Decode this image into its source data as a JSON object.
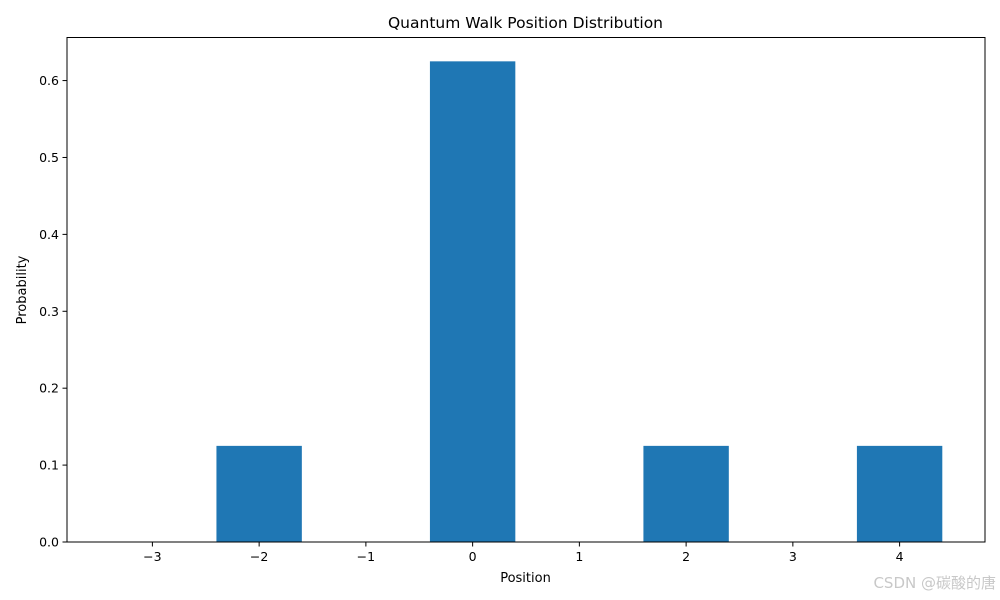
{
  "chart_data": {
    "type": "bar",
    "title": "Quantum Walk Position Distribution",
    "xlabel": "Position",
    "ylabel": "Probability",
    "x": [
      -2,
      0,
      2,
      4
    ],
    "values": [
      0.125,
      0.625,
      0.125,
      0.125
    ],
    "xlim": [
      -3.8,
      4.8
    ],
    "ylim": [
      0,
      0.656
    ],
    "xticks": [
      -3,
      -2,
      -1,
      0,
      1,
      2,
      3,
      4
    ],
    "xtick_labels": [
      "−3",
      "−2",
      "−1",
      "0",
      "1",
      "2",
      "3",
      "4"
    ],
    "yticks": [
      0.0,
      0.1,
      0.2,
      0.3,
      0.4,
      0.5,
      0.6
    ],
    "ytick_labels": [
      "0.0",
      "0.1",
      "0.2",
      "0.3",
      "0.4",
      "0.5",
      "0.6"
    ],
    "bar_color": "#1f77b4",
    "grid": false,
    "legend": "none"
  },
  "watermark": "CSDN @碳酸的唐"
}
